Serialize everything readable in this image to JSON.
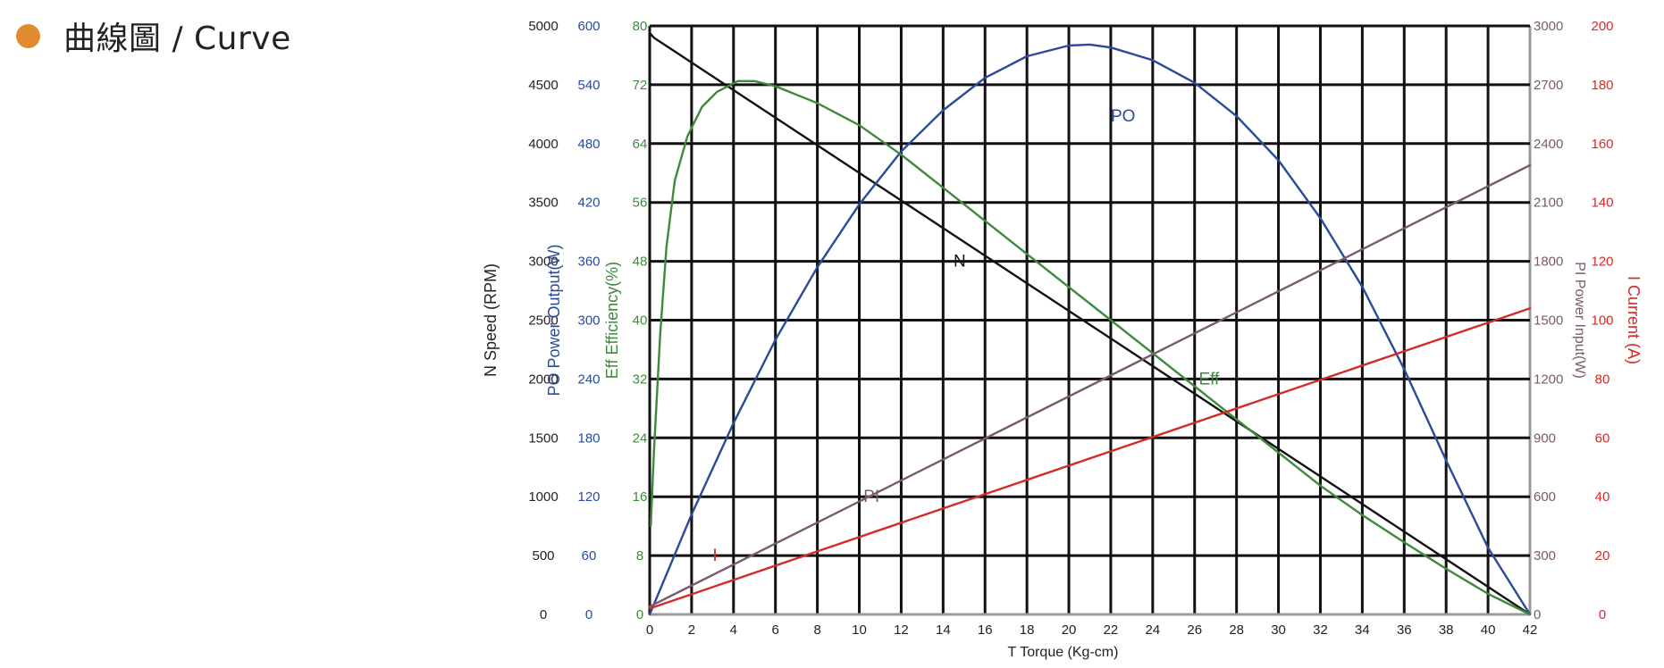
{
  "header": {
    "title": "曲線圖 / Curve",
    "bullet_color": "#e08b2e"
  },
  "chart_data": {
    "type": "line",
    "x_label": "T    Torque (Kg-cm)",
    "x_range": [
      0,
      42
    ],
    "x_ticks": [
      0,
      2,
      4,
      6,
      8,
      10,
      12,
      14,
      16,
      18,
      20,
      22,
      24,
      26,
      28,
      30,
      32,
      34,
      36,
      38,
      40,
      42
    ],
    "grid": true,
    "axes": [
      {
        "id": "N",
        "label": "N Speed (RPM)",
        "side": "left",
        "color": "#222222",
        "range": [
          0,
          5000
        ],
        "ticks": [
          0,
          500,
          1000,
          1500,
          2000,
          2500,
          3000,
          3500,
          4000,
          4500,
          5000
        ]
      },
      {
        "id": "PO",
        "label": "PO Power Output(W)",
        "side": "left",
        "color": "#2a4a9a",
        "range": [
          0,
          600
        ],
        "ticks": [
          0,
          60,
          120,
          180,
          240,
          300,
          360,
          420,
          480,
          540,
          600
        ]
      },
      {
        "id": "Eff",
        "label": "Eff Efficiency(%)",
        "side": "left",
        "color": "#3d8a3d",
        "range": [
          0,
          80
        ],
        "ticks": [
          0,
          8,
          16,
          24,
          32,
          40,
          48,
          56,
          64,
          72,
          80
        ]
      },
      {
        "id": "PI",
        "label": "PI   Power Input(W)",
        "side": "right",
        "color": "#7a5a6e",
        "range": [
          0,
          3000
        ],
        "ticks": [
          0,
          300,
          600,
          900,
          1200,
          1500,
          1800,
          2100,
          2400,
          2700,
          3000
        ]
      },
      {
        "id": "I",
        "label": "I   Current (A)",
        "side": "right",
        "color": "#d42a2a",
        "range": [
          0,
          200
        ],
        "ticks": [
          0,
          20,
          40,
          60,
          80,
          100,
          120,
          140,
          160,
          180,
          200
        ]
      }
    ],
    "series": [
      {
        "name": "N",
        "axis": "N",
        "color": "#111111",
        "label_at": [
          14.5,
          3000
        ],
        "points": [
          [
            0.05,
            4930
          ],
          [
            0.2,
            4900
          ],
          [
            42,
            0
          ]
        ]
      },
      {
        "name": "PO",
        "axis": "PO",
        "color": "#2a4a9a",
        "label_at": [
          22,
          508
        ],
        "points": [
          [
            0,
            0
          ],
          [
            2,
            102
          ],
          [
            4,
            195
          ],
          [
            6,
            280
          ],
          [
            8,
            354
          ],
          [
            10,
            418
          ],
          [
            12,
            472
          ],
          [
            14,
            514
          ],
          [
            16,
            547
          ],
          [
            18,
            569
          ],
          [
            20,
            580
          ],
          [
            21,
            581
          ],
          [
            22,
            578
          ],
          [
            24,
            565
          ],
          [
            26,
            542
          ],
          [
            28,
            508
          ],
          [
            30,
            463
          ],
          [
            32,
            404
          ],
          [
            34,
            334
          ],
          [
            36,
            250
          ],
          [
            38,
            157
          ],
          [
            40,
            68
          ],
          [
            42,
            0
          ]
        ]
      },
      {
        "name": "Eff",
        "axis": "Eff",
        "color": "#3d8a3d",
        "label_at": [
          26.2,
          32
        ],
        "points": [
          [
            0.05,
            12
          ],
          [
            0.2,
            22
          ],
          [
            0.5,
            38
          ],
          [
            0.8,
            50
          ],
          [
            1.2,
            59
          ],
          [
            1.8,
            65
          ],
          [
            2.5,
            69
          ],
          [
            3.2,
            71
          ],
          [
            4.2,
            72.5
          ],
          [
            5,
            72.5
          ],
          [
            6,
            71.8
          ],
          [
            8,
            69.5
          ],
          [
            10,
            66.5
          ],
          [
            12,
            62.5
          ],
          [
            14,
            58
          ],
          [
            16,
            53.5
          ],
          [
            18,
            49
          ],
          [
            20,
            44.5
          ],
          [
            22,
            40
          ],
          [
            24,
            35.5
          ],
          [
            26,
            31
          ],
          [
            28,
            26.5
          ],
          [
            30,
            22
          ],
          [
            32,
            17.5
          ],
          [
            34,
            13.5
          ],
          [
            36,
            9.8
          ],
          [
            38,
            6.2
          ],
          [
            40,
            2.8
          ],
          [
            42,
            0
          ]
        ]
      },
      {
        "name": "PI",
        "axis": "PI",
        "color": "#7a5a6e",
        "label_at": [
          10.2,
          600
        ],
        "points": [
          [
            0,
            40
          ],
          [
            42,
            2290
          ]
        ]
      },
      {
        "name": "I",
        "axis": "I",
        "color": "#d42a2a",
        "label_at": [
          3,
          20
        ],
        "points": [
          [
            0,
            2
          ],
          [
            42,
            104
          ]
        ]
      }
    ]
  }
}
